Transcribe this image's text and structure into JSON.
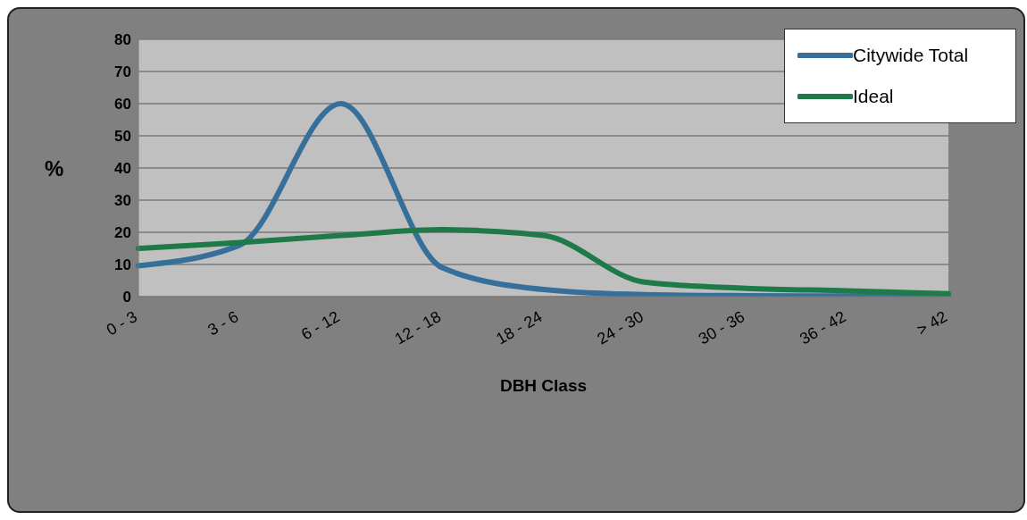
{
  "chart_data": {
    "type": "line",
    "xlabel": "DBH Class",
    "ylabel": "%",
    "categories": [
      "0 - 3",
      "3 - 6",
      "6 - 12",
      "12 - 18",
      "18 - 24",
      "24 - 30",
      "30 - 36",
      "36 - 42",
      "> 42"
    ],
    "series": [
      {
        "name": "Citywide Total",
        "color": "#356f9a",
        "values": [
          9.6,
          16,
          60,
          9,
          2.2,
          0.6,
          0.3,
          0.2,
          0.1
        ]
      },
      {
        "name": "Ideal",
        "color": "#1f7a4a",
        "values": [
          15,
          16.8,
          19,
          20.8,
          19,
          4.5,
          2.6,
          1.8,
          0.9
        ]
      }
    ],
    "ylim": [
      0,
      80
    ],
    "yticks": [
      0,
      10,
      20,
      30,
      40,
      50,
      60,
      70,
      80
    ],
    "grid": "y",
    "legend": "top right",
    "marker": "none",
    "line_style": "solid"
  }
}
